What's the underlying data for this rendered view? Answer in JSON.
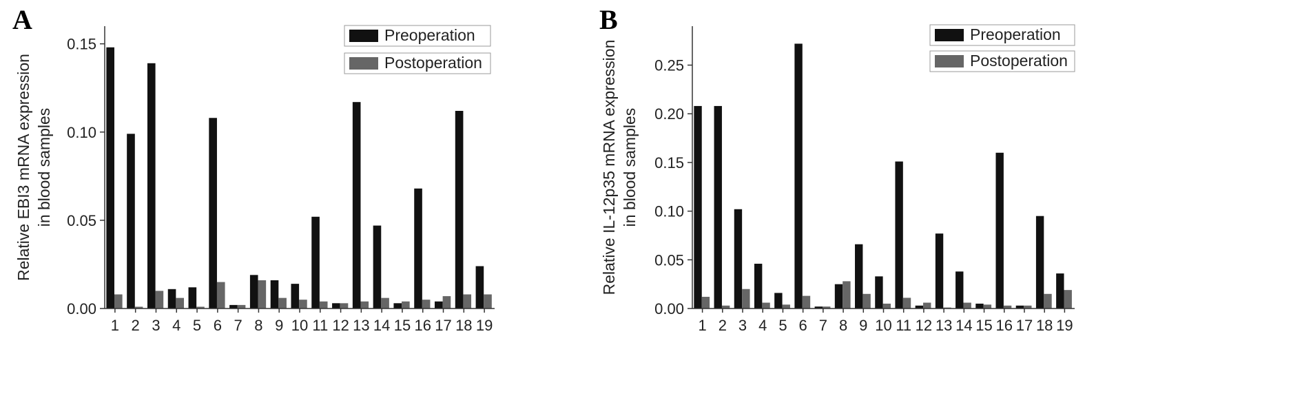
{
  "chart_data": [
    {
      "panel": "A",
      "type": "bar",
      "ylabel_lines": [
        "Relative EBI3 mRNA expression",
        "in blood samples"
      ],
      "categories": [
        "1",
        "2",
        "3",
        "4",
        "5",
        "6",
        "7",
        "8",
        "9",
        "10",
        "11",
        "12",
        "13",
        "14",
        "15",
        "16",
        "17",
        "18",
        "19"
      ],
      "series": [
        {
          "name": "Preoperation",
          "color": "#111111",
          "values": [
            0.148,
            0.099,
            0.139,
            0.011,
            0.012,
            0.108,
            0.002,
            0.019,
            0.016,
            0.014,
            0.052,
            0.003,
            0.117,
            0.047,
            0.003,
            0.068,
            0.004,
            0.112,
            0.024
          ]
        },
        {
          "name": "Postoperation",
          "color": "#666666",
          "values": [
            0.008,
            0.001,
            0.01,
            0.006,
            0.001,
            0.015,
            0.002,
            0.016,
            0.006,
            0.005,
            0.004,
            0.003,
            0.004,
            0.006,
            0.004,
            0.005,
            0.007,
            0.008,
            0.008
          ]
        }
      ],
      "yticks": [
        "0.00",
        "0.05",
        "0.10",
        "0.15"
      ],
      "ylim": [
        0,
        0.16
      ],
      "legend_position": "top-right",
      "grid": false
    },
    {
      "panel": "B",
      "type": "bar",
      "ylabel_lines": [
        "Relative IL-12p35 mRNA expression",
        "in blood samples"
      ],
      "categories": [
        "1",
        "2",
        "3",
        "4",
        "5",
        "6",
        "7",
        "8",
        "9",
        "10",
        "11",
        "12",
        "13",
        "14",
        "15",
        "16",
        "17",
        "18",
        "19"
      ],
      "series": [
        {
          "name": "Preoperation",
          "color": "#111111",
          "values": [
            0.208,
            0.208,
            0.102,
            0.046,
            0.016,
            0.272,
            0.002,
            0.025,
            0.066,
            0.033,
            0.151,
            0.003,
            0.077,
            0.038,
            0.005,
            0.16,
            0.003,
            0.095,
            0.036
          ]
        },
        {
          "name": "Postoperation",
          "color": "#666666",
          "values": [
            0.012,
            0.003,
            0.02,
            0.006,
            0.004,
            0.013,
            0.002,
            0.028,
            0.015,
            0.005,
            0.011,
            0.006,
            0.001,
            0.006,
            0.004,
            0.003,
            0.003,
            0.015,
            0.019
          ]
        }
      ],
      "yticks": [
        "0.00",
        "0.05",
        "0.10",
        "0.15",
        "0.20",
        "0.25"
      ],
      "ylim": [
        0,
        0.29
      ],
      "legend_position": "top-right",
      "grid": false
    }
  ]
}
